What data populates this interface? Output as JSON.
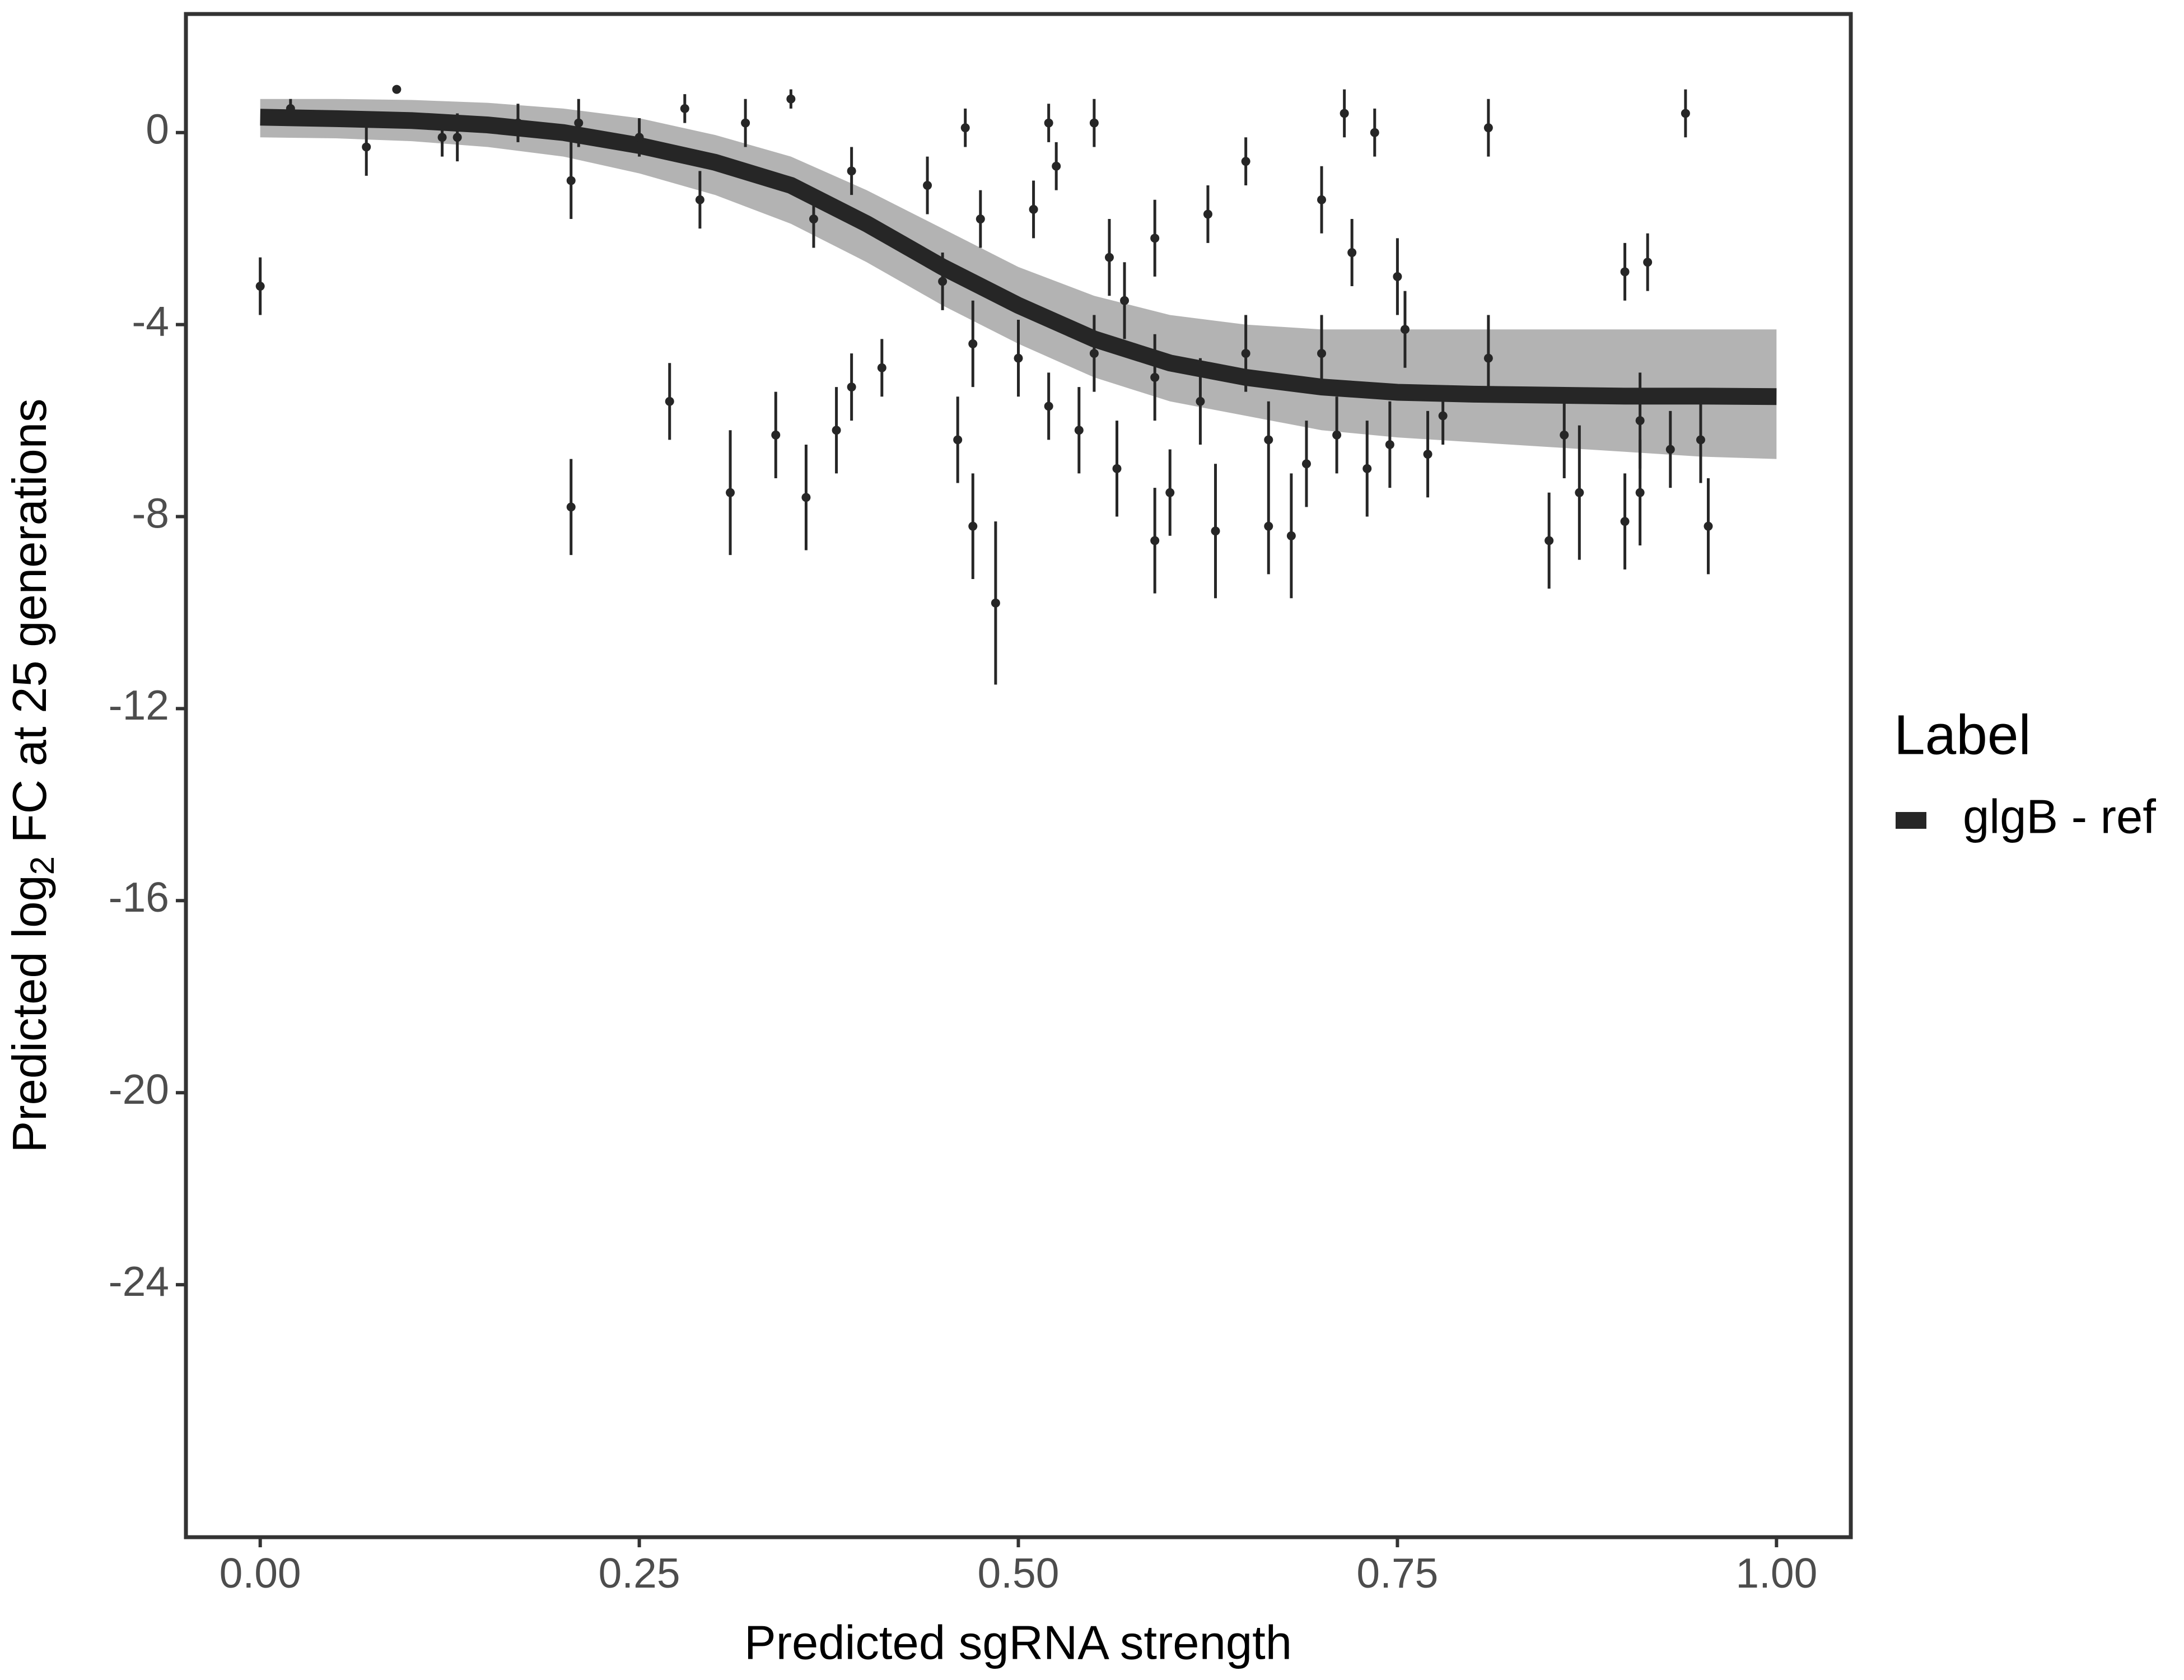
{
  "chart_data": {
    "type": "scatter",
    "x_label": "Predicted sgRNA strength",
    "y_label": {
      "before": "Predicted  log",
      "sub": "2",
      "after": " FC at 25 generations"
    },
    "legend_title": "Label",
    "xlim": [
      -0.049,
      1.049
    ],
    "ylim": [
      -29.26,
      2.47
    ],
    "xticks": [
      {
        "value": 0,
        "label": "0.00"
      },
      {
        "value": 0.25,
        "label": "0.25"
      },
      {
        "value": 0.5,
        "label": "0.50"
      },
      {
        "value": 0.75,
        "label": "0.75"
      },
      {
        "value": 1,
        "label": "1.00"
      }
    ],
    "yticks": [
      0,
      -4,
      -8,
      -12,
      -16,
      -20,
      -24
    ],
    "series": [
      {
        "name": "glgB - ref",
        "color": "#262626",
        "x": [
          0,
          0.05,
          0.1,
          0.15,
          0.2,
          0.25,
          0.3,
          0.35,
          0.4,
          0.45,
          0.5,
          0.55,
          0.6,
          0.65,
          0.7,
          0.75,
          0.8,
          0.85,
          0.9,
          0.95,
          1.0
        ],
        "values": [
          0.32,
          0.29,
          0.25,
          0.16,
          0.0,
          -0.27,
          -0.62,
          -1.1,
          -1.9,
          -2.8,
          -3.6,
          -4.3,
          -4.8,
          -5.1,
          -5.3,
          -5.41,
          -5.45,
          -5.47,
          -5.49,
          -5.49,
          -5.5
        ]
      }
    ],
    "band": {
      "color": "#a6a6a6",
      "x": [
        0,
        0.05,
        0.1,
        0.15,
        0.2,
        0.25,
        0.3,
        0.35,
        0.4,
        0.45,
        0.5,
        0.55,
        0.6,
        0.65,
        0.7,
        0.75,
        0.8,
        0.85,
        0.9,
        0.95,
        1.0
      ],
      "upper": [
        0.7,
        0.7,
        0.68,
        0.62,
        0.5,
        0.3,
        -0.05,
        -0.5,
        -1.2,
        -2.0,
        -2.8,
        -3.4,
        -3.8,
        -4.0,
        -4.1,
        -4.1,
        -4.1,
        -4.1,
        -4.1,
        -4.1,
        -4.1
      ],
      "lower": [
        -0.1,
        -0.12,
        -0.18,
        -0.3,
        -0.5,
        -0.85,
        -1.3,
        -1.9,
        -2.7,
        -3.6,
        -4.4,
        -5.1,
        -5.6,
        -5.9,
        -6.2,
        -6.35,
        -6.45,
        -6.55,
        -6.65,
        -6.75,
        -6.8
      ]
    },
    "points": {
      "color": "#262626",
      "x": [
        0.0,
        0.02,
        0.07,
        0.09,
        0.12,
        0.13,
        0.17,
        0.205,
        0.205,
        0.21,
        0.25,
        0.27,
        0.28,
        0.29,
        0.31,
        0.32,
        0.34,
        0.35,
        0.36,
        0.365,
        0.38,
        0.39,
        0.39,
        0.41,
        0.44,
        0.45,
        0.46,
        0.465,
        0.47,
        0.47,
        0.475,
        0.485,
        0.5,
        0.51,
        0.52,
        0.52,
        0.525,
        0.54,
        0.55,
        0.55,
        0.56,
        0.565,
        0.57,
        0.59,
        0.59,
        0.59,
        0.6,
        0.62,
        0.625,
        0.63,
        0.65,
        0.65,
        0.665,
        0.665,
        0.68,
        0.69,
        0.7,
        0.7,
        0.71,
        0.715,
        0.72,
        0.73,
        0.735,
        0.745,
        0.75,
        0.755,
        0.77,
        0.78,
        0.81,
        0.81,
        0.85,
        0.86,
        0.87,
        0.9,
        0.9,
        0.91,
        0.91,
        0.915,
        0.93,
        0.94,
        0.95,
        0.955
      ],
      "values": [
        -3.2,
        0.5,
        -0.3,
        0.9,
        -0.1,
        -0.1,
        0.2,
        -7.8,
        -1.0,
        0.2,
        -0.1,
        -5.6,
        0.5,
        -1.4,
        -7.5,
        0.2,
        -6.3,
        0.7,
        -7.6,
        -1.8,
        -6.2,
        -0.8,
        -5.3,
        -4.9,
        -1.1,
        -3.1,
        -6.4,
        0.1,
        -8.2,
        -4.4,
        -1.8,
        -9.8,
        -4.7,
        -1.6,
        -5.7,
        0.2,
        -0.7,
        -6.2,
        -4.6,
        0.2,
        -2.6,
        -7.0,
        -3.5,
        -5.1,
        -8.5,
        -2.2,
        -7.5,
        -5.6,
        -1.7,
        -8.3,
        -4.6,
        -0.6,
        -6.4,
        -8.2,
        -8.4,
        -6.9,
        -1.4,
        -4.6,
        -6.3,
        0.4,
        -2.5,
        -7.0,
        0.0,
        -6.5,
        -3.0,
        -4.1,
        -6.7,
        -5.9,
        0.1,
        -4.7,
        -8.5,
        -6.3,
        -7.5,
        -8.1,
        -2.9,
        -6.0,
        -7.5,
        -2.7,
        -6.6,
        0.4,
        -6.4,
        -8.2
      ],
      "errors": [
        0.6,
        0.2,
        0.6,
        0,
        0.4,
        0.5,
        0.4,
        1.0,
        0.8,
        0.5,
        0.4,
        0.8,
        0.3,
        0.6,
        1.3,
        0.5,
        0.9,
        0.2,
        1.1,
        0.6,
        0.9,
        0.5,
        0.7,
        0.6,
        0.6,
        0.6,
        0.9,
        0.4,
        1.1,
        0.9,
        0.6,
        1.7,
        0.8,
        0.6,
        0.7,
        0.4,
        0.5,
        0.9,
        0.8,
        0.5,
        0.8,
        1.0,
        0.8,
        0.9,
        1.1,
        0.8,
        0.9,
        0.9,
        0.6,
        1.4,
        0.8,
        0.5,
        0.8,
        1.0,
        1.3,
        0.9,
        0.7,
        0.8,
        0.8,
        0.5,
        0.7,
        1.0,
        0.5,
        0.9,
        0.8,
        0.8,
        0.9,
        0.6,
        0.6,
        0.9,
        1.0,
        0.9,
        1.4,
        1.0,
        0.6,
        1.0,
        1.1,
        0.6,
        0.8,
        0.5,
        0.9,
        1.0
      ]
    }
  }
}
